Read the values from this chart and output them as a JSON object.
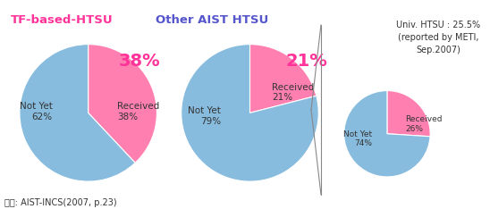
{
  "chart1": {
    "title": "TF-based-HTSU",
    "title_color": "#FF3399",
    "values": [
      38,
      62
    ],
    "labels": [
      "Received\n38%",
      "Not Yet\n62%"
    ],
    "colors": [
      "#FF80B0",
      "#87BCDE"
    ],
    "big_label": "38%",
    "startangle": 90
  },
  "chart2": {
    "title": "Other AIST HTSU",
    "title_color": "#5555CC",
    "values": [
      21,
      79
    ],
    "labels": [
      "Received\n21%",
      "Not Yet\n79%"
    ],
    "colors": [
      "#FF80B0",
      "#87BCDE"
    ],
    "big_label": "21%",
    "startangle": 90
  },
  "chart3": {
    "annotation": "Univ. HTSU : 25.5%\n(reported by METI,\nSep.2007)",
    "annotation_color": "#333333",
    "values": [
      26,
      74
    ],
    "labels": [
      "Received\n26%",
      "Not Yet\n74%"
    ],
    "colors": [
      "#FF80B0",
      "#87BCDE"
    ],
    "startangle": 90
  },
  "footer": "자료: AIST-INCS(2007, p.23)",
  "bg_color": "#FFFFFF",
  "pink": "#FF3399",
  "label_color": "#333333"
}
